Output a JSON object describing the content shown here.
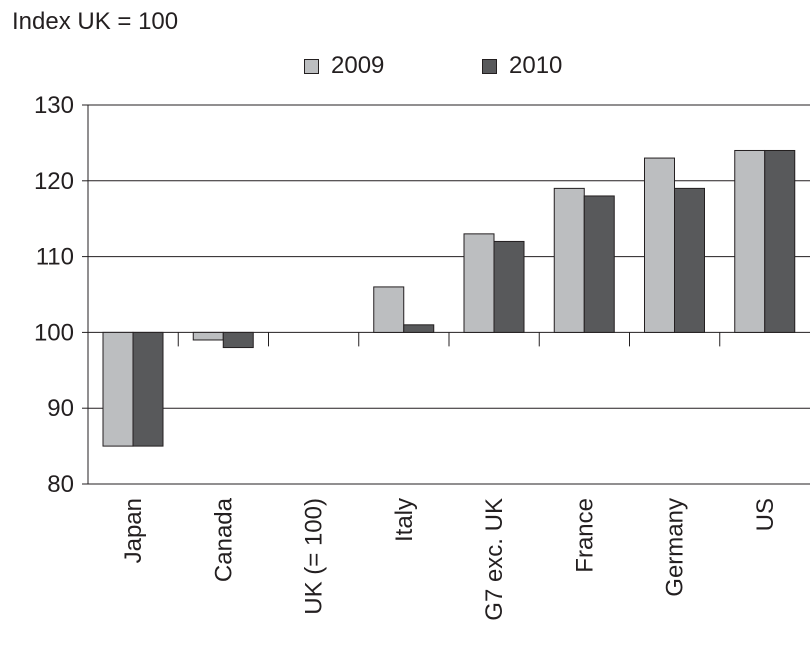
{
  "chart_data": {
    "type": "bar",
    "title": "Index UK = 100",
    "categories": [
      "Japan",
      "Canada",
      "UK (= 100)",
      "Italy",
      "G7 exc. UK",
      "France",
      "Germany",
      "US"
    ],
    "series": [
      {
        "name": "2009",
        "values": [
          85,
          99,
          100,
          106,
          113,
          119,
          123,
          124
        ],
        "color": "#bcbec0"
      },
      {
        "name": "2010",
        "values": [
          85,
          98,
          100,
          101,
          112,
          118,
          119,
          124
        ],
        "color": "#58595b"
      }
    ],
    "baseline": 100,
    "ylim": [
      80,
      130
    ],
    "yticks": [
      80,
      90,
      100,
      110,
      120,
      130
    ],
    "grid": true,
    "legend": "top-center",
    "xlabel": "",
    "ylabel": ""
  }
}
